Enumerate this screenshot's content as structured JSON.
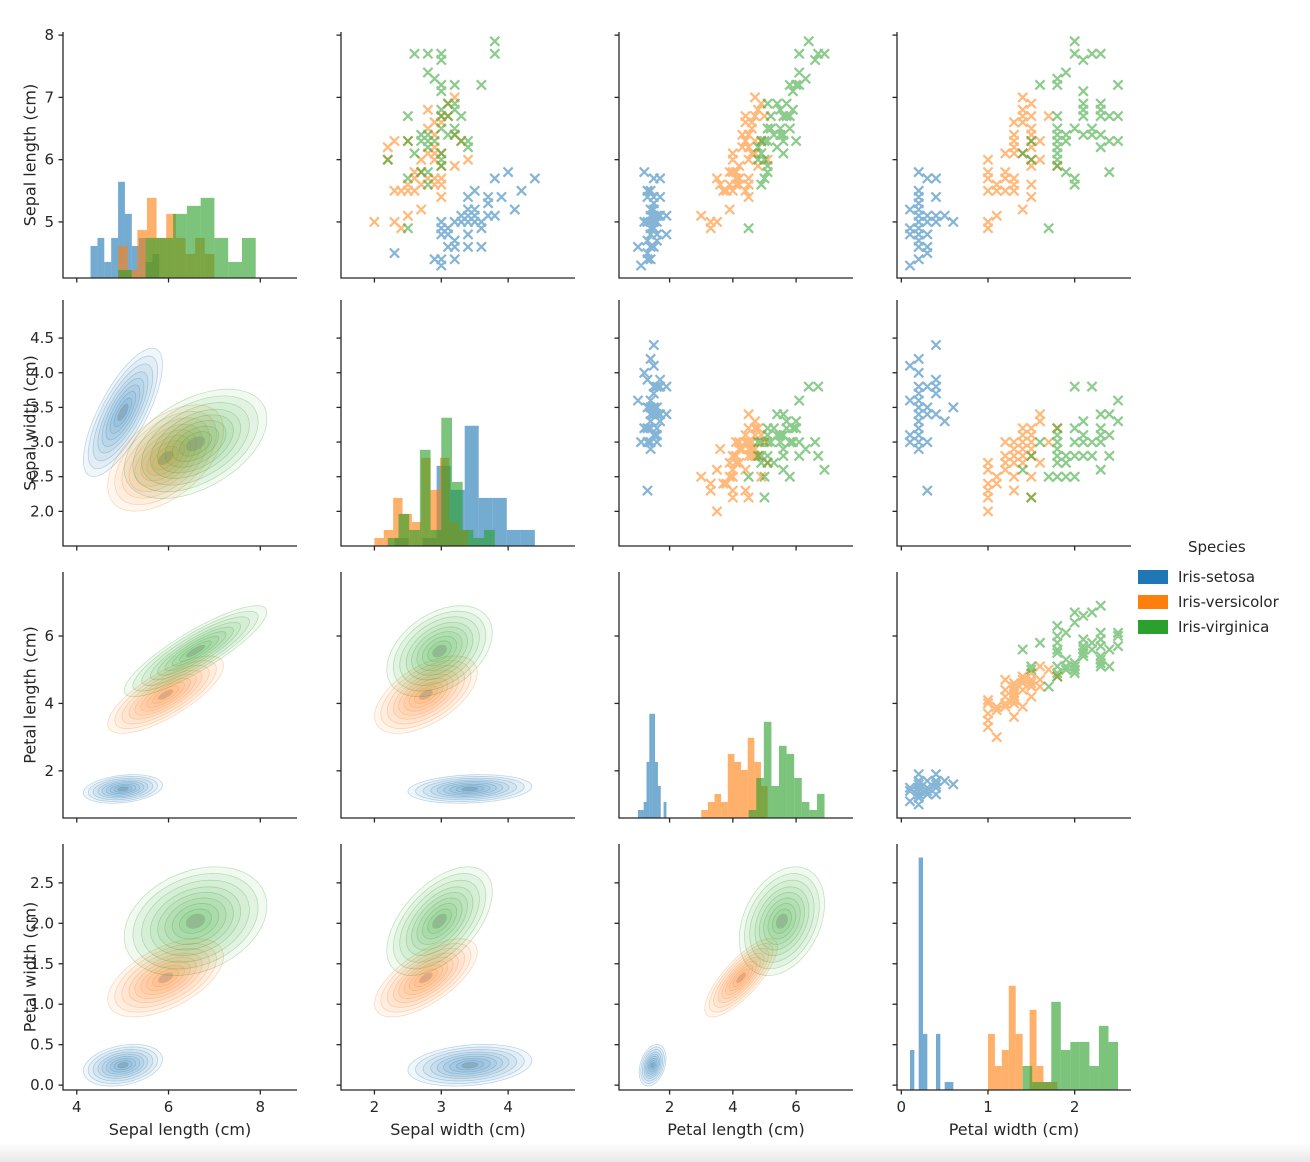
{
  "legend": {
    "title": "Species",
    "entries": [
      {
        "label": "Iris-setosa",
        "color": "#1f77b4"
      },
      {
        "label": "Iris-versicolor",
        "color": "#ff7f0e"
      },
      {
        "label": "Iris-virginica",
        "color": "#2ca02c"
      }
    ],
    "position": "right-middle"
  },
  "chart_data": {
    "type": "scatter",
    "subtype": "pairplot_matrix_4x4",
    "title": "",
    "variables": [
      "Sepal length (cm)",
      "Sepal width (cm)",
      "Petal length (cm)",
      "Petal width (cm)"
    ],
    "diagonal": "histogram_per_species",
    "upper_triangle": "scatter_x_markers",
    "lower_triangle": "filled_kde_contours",
    "grid": false,
    "legend_position": "right",
    "x_tick_labels": [
      [
        "4",
        "6",
        "8"
      ],
      [
        "2",
        "3",
        "4"
      ],
      [
        "2",
        "4",
        "6"
      ],
      [
        "0",
        "1",
        "2"
      ]
    ],
    "y_tick_labels": [
      [
        "5",
        "6",
        "7",
        "8"
      ],
      [
        "2.0",
        "2.5",
        "3.0",
        "3.5",
        "4.0",
        "4.5"
      ],
      [
        "2",
        "4",
        "6"
      ],
      [
        "0.0",
        "0.5",
        "1.0",
        "1.5",
        "2.0",
        "2.5"
      ]
    ],
    "x_ranges": [
      [
        3.7,
        8.8
      ],
      [
        1.5,
        5.0
      ],
      [
        0.4,
        7.8
      ],
      [
        -0.05,
        2.65
      ]
    ],
    "y_ranges": [
      [
        4.1,
        8.05
      ],
      [
        1.5,
        5.05
      ],
      [
        0.6,
        7.9
      ],
      [
        -0.06,
        2.98
      ]
    ],
    "series": [
      {
        "name": "Iris-setosa",
        "color": "#1f77b4",
        "points": [
          [
            5.1,
            3.5,
            1.4,
            0.2
          ],
          [
            4.9,
            3.0,
            1.4,
            0.2
          ],
          [
            4.7,
            3.2,
            1.3,
            0.2
          ],
          [
            4.6,
            3.1,
            1.5,
            0.2
          ],
          [
            5.0,
            3.6,
            1.4,
            0.2
          ],
          [
            5.4,
            3.9,
            1.7,
            0.4
          ],
          [
            4.6,
            3.4,
            1.4,
            0.3
          ],
          [
            5.0,
            3.4,
            1.5,
            0.2
          ],
          [
            4.4,
            2.9,
            1.4,
            0.2
          ],
          [
            4.9,
            3.1,
            1.5,
            0.1
          ],
          [
            5.4,
            3.7,
            1.5,
            0.2
          ],
          [
            4.8,
            3.4,
            1.6,
            0.2
          ],
          [
            4.8,
            3.0,
            1.4,
            0.1
          ],
          [
            4.3,
            3.0,
            1.1,
            0.1
          ],
          [
            5.8,
            4.0,
            1.2,
            0.2
          ],
          [
            5.7,
            4.4,
            1.5,
            0.4
          ],
          [
            5.4,
            3.9,
            1.3,
            0.4
          ],
          [
            5.1,
            3.5,
            1.4,
            0.3
          ],
          [
            5.7,
            3.8,
            1.7,
            0.3
          ],
          [
            5.1,
            3.8,
            1.5,
            0.3
          ],
          [
            5.4,
            3.4,
            1.7,
            0.2
          ],
          [
            5.1,
            3.7,
            1.5,
            0.4
          ],
          [
            4.6,
            3.6,
            1.0,
            0.2
          ],
          [
            5.1,
            3.3,
            1.7,
            0.5
          ],
          [
            4.8,
            3.4,
            1.9,
            0.2
          ],
          [
            5.0,
            3.0,
            1.6,
            0.2
          ],
          [
            5.0,
            3.4,
            1.6,
            0.4
          ],
          [
            5.2,
            3.5,
            1.5,
            0.2
          ],
          [
            5.2,
            3.4,
            1.4,
            0.2
          ],
          [
            4.7,
            3.2,
            1.6,
            0.2
          ],
          [
            4.8,
            3.1,
            1.6,
            0.2
          ],
          [
            5.4,
            3.4,
            1.5,
            0.4
          ],
          [
            5.2,
            4.1,
            1.5,
            0.1
          ],
          [
            5.5,
            4.2,
            1.4,
            0.2
          ],
          [
            4.9,
            3.1,
            1.5,
            0.2
          ],
          [
            5.0,
            3.2,
            1.2,
            0.2
          ],
          [
            5.5,
            3.5,
            1.3,
            0.2
          ],
          [
            4.9,
            3.6,
            1.4,
            0.1
          ],
          [
            4.4,
            3.0,
            1.3,
            0.2
          ],
          [
            5.1,
            3.4,
            1.5,
            0.2
          ],
          [
            5.0,
            3.5,
            1.3,
            0.3
          ],
          [
            4.5,
            2.3,
            1.3,
            0.3
          ],
          [
            4.4,
            3.2,
            1.3,
            0.2
          ],
          [
            5.0,
            3.5,
            1.6,
            0.6
          ],
          [
            5.1,
            3.8,
            1.9,
            0.4
          ],
          [
            4.8,
            3.0,
            1.4,
            0.3
          ],
          [
            5.1,
            3.8,
            1.6,
            0.2
          ],
          [
            4.6,
            3.2,
            1.4,
            0.2
          ],
          [
            5.3,
            3.7,
            1.5,
            0.2
          ],
          [
            5.0,
            3.3,
            1.4,
            0.2
          ]
        ]
      },
      {
        "name": "Iris-versicolor",
        "color": "#ff7f0e",
        "points": [
          [
            7.0,
            3.2,
            4.7,
            1.4
          ],
          [
            6.4,
            3.2,
            4.5,
            1.5
          ],
          [
            6.9,
            3.1,
            4.9,
            1.5
          ],
          [
            5.5,
            2.3,
            4.0,
            1.3
          ],
          [
            6.5,
            2.8,
            4.6,
            1.5
          ],
          [
            5.7,
            2.8,
            4.5,
            1.3
          ],
          [
            6.3,
            3.3,
            4.7,
            1.6
          ],
          [
            4.9,
            2.4,
            3.3,
            1.0
          ],
          [
            6.6,
            2.9,
            4.6,
            1.3
          ],
          [
            5.2,
            2.7,
            3.9,
            1.4
          ],
          [
            5.0,
            2.0,
            3.5,
            1.0
          ],
          [
            5.9,
            3.0,
            4.2,
            1.5
          ],
          [
            6.0,
            2.2,
            4.0,
            1.0
          ],
          [
            6.1,
            2.9,
            4.7,
            1.4
          ],
          [
            5.6,
            2.9,
            3.6,
            1.3
          ],
          [
            6.7,
            3.1,
            4.4,
            1.4
          ],
          [
            5.6,
            3.0,
            4.5,
            1.5
          ],
          [
            5.8,
            2.7,
            4.1,
            1.0
          ],
          [
            6.2,
            2.2,
            4.5,
            1.5
          ],
          [
            5.6,
            2.5,
            3.9,
            1.1
          ],
          [
            5.9,
            3.2,
            4.8,
            1.8
          ],
          [
            6.1,
            2.8,
            4.0,
            1.3
          ],
          [
            6.3,
            2.5,
            4.9,
            1.5
          ],
          [
            6.1,
            2.8,
            4.7,
            1.2
          ],
          [
            6.4,
            2.9,
            4.3,
            1.3
          ],
          [
            6.6,
            3.0,
            4.4,
            1.4
          ],
          [
            6.8,
            2.8,
            4.8,
            1.4
          ],
          [
            6.7,
            3.0,
            5.0,
            1.7
          ],
          [
            6.0,
            2.9,
            4.5,
            1.5
          ],
          [
            5.7,
            2.6,
            3.5,
            1.0
          ],
          [
            5.5,
            2.4,
            3.8,
            1.1
          ],
          [
            5.5,
            2.4,
            3.7,
            1.0
          ],
          [
            5.8,
            2.7,
            3.9,
            1.2
          ],
          [
            6.0,
            2.7,
            5.1,
            1.6
          ],
          [
            5.4,
            3.0,
            4.5,
            1.5
          ],
          [
            6.0,
            3.4,
            4.5,
            1.6
          ],
          [
            6.7,
            3.1,
            4.7,
            1.5
          ],
          [
            6.3,
            2.3,
            4.4,
            1.3
          ],
          [
            5.6,
            3.0,
            4.1,
            1.3
          ],
          [
            5.5,
            2.5,
            4.0,
            1.3
          ],
          [
            5.5,
            2.6,
            4.4,
            1.2
          ],
          [
            6.1,
            3.0,
            4.6,
            1.4
          ],
          [
            5.8,
            2.6,
            4.0,
            1.2
          ],
          [
            5.0,
            2.3,
            3.3,
            1.0
          ],
          [
            5.6,
            2.7,
            4.2,
            1.3
          ],
          [
            5.7,
            3.0,
            4.2,
            1.2
          ],
          [
            5.7,
            2.9,
            4.2,
            1.3
          ],
          [
            6.2,
            2.9,
            4.3,
            1.3
          ],
          [
            5.1,
            2.5,
            3.0,
            1.1
          ],
          [
            5.7,
            2.8,
            4.1,
            1.3
          ]
        ]
      },
      {
        "name": "Iris-virginica",
        "color": "#2ca02c",
        "points": [
          [
            6.3,
            3.3,
            6.0,
            2.5
          ],
          [
            5.8,
            2.7,
            5.1,
            1.9
          ],
          [
            7.1,
            3.0,
            5.9,
            2.1
          ],
          [
            6.3,
            2.9,
            5.6,
            1.8
          ],
          [
            6.5,
            3.0,
            5.8,
            2.2
          ],
          [
            7.6,
            3.0,
            6.6,
            2.1
          ],
          [
            4.9,
            2.5,
            4.5,
            1.7
          ],
          [
            7.3,
            2.9,
            6.3,
            1.8
          ],
          [
            6.7,
            2.5,
            5.8,
            1.8
          ],
          [
            7.2,
            3.6,
            6.1,
            2.5
          ],
          [
            6.5,
            3.2,
            5.1,
            2.0
          ],
          [
            6.4,
            2.7,
            5.3,
            1.9
          ],
          [
            6.8,
            3.0,
            5.5,
            2.1
          ],
          [
            5.7,
            2.5,
            5.0,
            2.0
          ],
          [
            5.8,
            2.8,
            5.1,
            2.4
          ],
          [
            6.4,
            3.2,
            5.3,
            2.3
          ],
          [
            6.5,
            3.0,
            5.5,
            1.8
          ],
          [
            7.7,
            3.8,
            6.7,
            2.2
          ],
          [
            7.7,
            2.6,
            6.9,
            2.3
          ],
          [
            6.0,
            2.2,
            5.0,
            1.5
          ],
          [
            6.9,
            3.2,
            5.7,
            2.3
          ],
          [
            5.6,
            2.8,
            4.9,
            2.0
          ],
          [
            7.7,
            2.8,
            6.7,
            2.0
          ],
          [
            6.3,
            2.7,
            4.9,
            1.8
          ],
          [
            6.7,
            3.3,
            5.7,
            2.1
          ],
          [
            7.2,
            3.2,
            6.0,
            1.8
          ],
          [
            6.2,
            2.8,
            4.8,
            1.8
          ],
          [
            6.1,
            3.0,
            4.9,
            1.8
          ],
          [
            6.4,
            2.8,
            5.6,
            2.1
          ],
          [
            7.2,
            3.0,
            5.8,
            1.6
          ],
          [
            7.4,
            2.8,
            6.1,
            1.9
          ],
          [
            7.9,
            3.8,
            6.4,
            2.0
          ],
          [
            6.4,
            2.8,
            5.6,
            2.2
          ],
          [
            6.3,
            2.8,
            5.1,
            1.5
          ],
          [
            6.1,
            2.6,
            5.6,
            1.4
          ],
          [
            7.7,
            3.0,
            6.1,
            2.3
          ],
          [
            6.3,
            3.4,
            5.6,
            2.4
          ],
          [
            6.4,
            3.1,
            5.5,
            1.8
          ],
          [
            6.0,
            3.0,
            4.8,
            1.8
          ],
          [
            6.9,
            3.1,
            5.4,
            2.1
          ],
          [
            6.7,
            3.1,
            5.6,
            2.4
          ],
          [
            6.9,
            3.1,
            5.1,
            2.3
          ],
          [
            5.8,
            2.7,
            5.1,
            1.9
          ],
          [
            6.8,
            3.2,
            5.9,
            2.3
          ],
          [
            6.7,
            3.3,
            5.7,
            2.5
          ],
          [
            6.7,
            3.0,
            5.2,
            2.3
          ],
          [
            6.3,
            2.5,
            5.0,
            1.9
          ],
          [
            6.5,
            3.0,
            5.2,
            2.0
          ],
          [
            6.2,
            3.4,
            5.4,
            2.3
          ],
          [
            5.9,
            3.0,
            5.1,
            1.8
          ]
        ]
      }
    ]
  }
}
